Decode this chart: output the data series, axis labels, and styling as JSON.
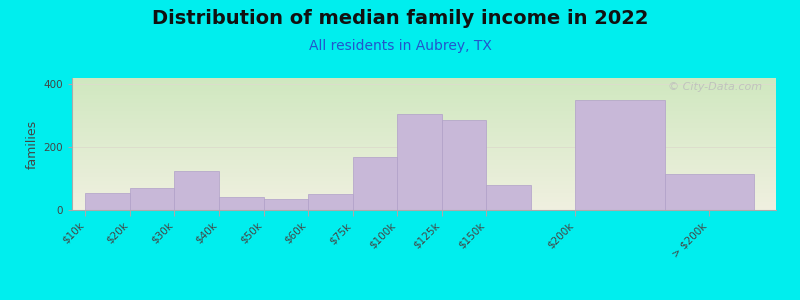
{
  "title": "Distribution of median family income in 2022",
  "subtitle": "All residents in Aubrey, TX",
  "ylabel": "families",
  "background_color": "#00EEEE",
  "plot_bg_gradient_top": "#d0e8c0",
  "plot_bg_gradient_bottom": "#f0f0e0",
  "bar_color": "#c8b8d8",
  "bar_edge_color": "#b0a0c8",
  "watermark": "© City-Data.com",
  "categories": [
    "$10k",
    "$20k",
    "$30k",
    "$40k",
    "$50k",
    "$60k",
    "$75k",
    "$100k",
    "$125k",
    "$150k",
    "$200k",
    "> $200k"
  ],
  "values": [
    55,
    70,
    125,
    40,
    35,
    50,
    170,
    305,
    285,
    80,
    350,
    115
  ],
  "bar_edges": [
    0,
    1,
    2,
    3,
    4,
    5,
    6,
    7,
    8,
    9,
    10,
    11,
    12
  ],
  "ylim": [
    0,
    420
  ],
  "yticks": [
    0,
    200,
    400
  ],
  "title_fontsize": 14,
  "subtitle_fontsize": 10,
  "ylabel_fontsize": 9,
  "tick_fontsize": 7.5
}
